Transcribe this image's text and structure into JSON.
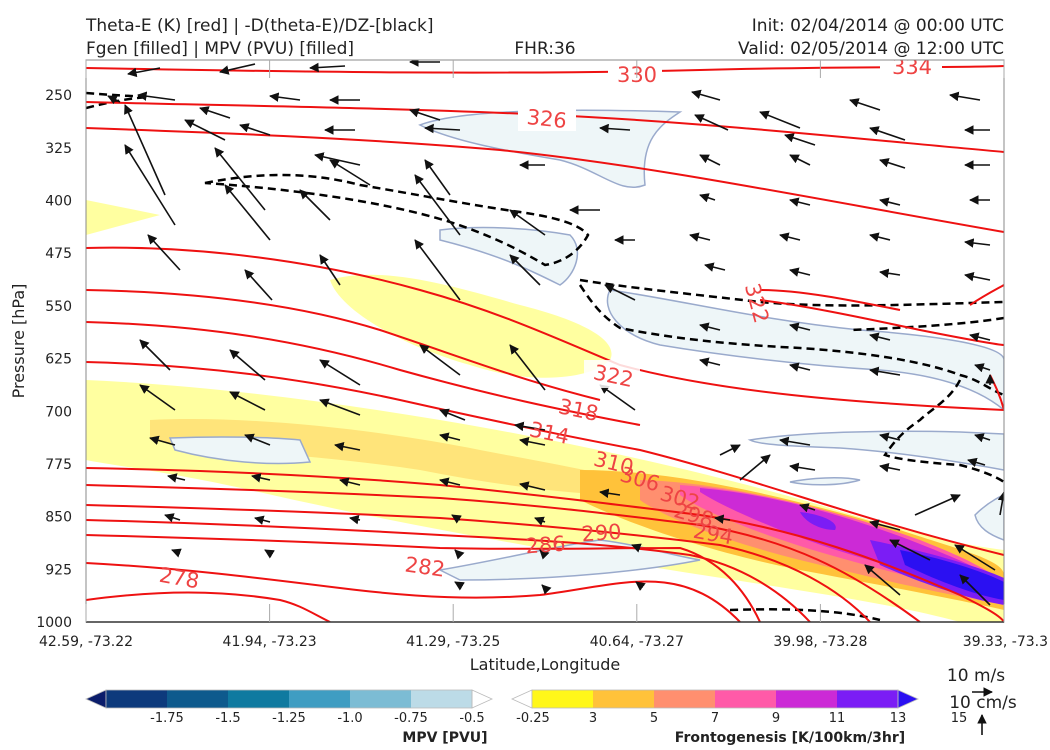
{
  "header": {
    "title_left_1": "Theta-E (K) [red] | -D(theta-E)/DZ-[black]",
    "title_left_2": "Fgen [filled] | MPV (PVU) [filled]",
    "fhr": "FHR:36",
    "init": "Init: 02/04/2014 @ 00:00 UTC",
    "valid": "Valid: 02/05/2014 @ 12:00 UTC"
  },
  "chart_data": {
    "type": "cross-section",
    "xlabel": "Latitude,Longitude",
    "ylabel": "Pressure [hPa]",
    "x_ticks": [
      "42.59, -73.22",
      "41.94, -73.23",
      "41.29, -73.25",
      "40.64, -73.27",
      "39.98, -73.28",
      "39.33, -73.3"
    ],
    "y_ticks": [
      250,
      325,
      400,
      475,
      550,
      625,
      700,
      775,
      850,
      925,
      1000
    ],
    "ylim": [
      1000,
      200
    ],
    "theta_e_contour_labels": [
      "330",
      "334",
      "326",
      "322",
      "322",
      "318",
      "314",
      "310",
      "306",
      "302",
      "298",
      "294",
      "290",
      "286",
      "282",
      "278"
    ],
    "vector_key": {
      "u_label": "10 m/s",
      "w_label": "10 cm/s"
    },
    "colorbars": [
      {
        "title": "MPV [PVU]",
        "labels": [
          "-1.75",
          "-1.5",
          "-1.25",
          "-1.0",
          "-0.75",
          "-0.5",
          "-0.25"
        ],
        "colors": [
          "#0b1d6b",
          "#0d3a7c",
          "#0e5a8d",
          "#0f7aa0",
          "#3f9dc2",
          "#7cbcd4",
          "#bcdbe7",
          "#ffffff"
        ]
      },
      {
        "title": "Frontogenesis [K/100km/3hr]",
        "labels": [
          "3",
          "5",
          "7",
          "9",
          "11",
          "13",
          "15"
        ],
        "colors": [
          "#ffffff",
          "#fff71a",
          "#ffc23a",
          "#ff8f6f",
          "#ff5aa8",
          "#cc2ad6",
          "#7b1df5",
          "#2b10f2"
        ]
      }
    ]
  }
}
